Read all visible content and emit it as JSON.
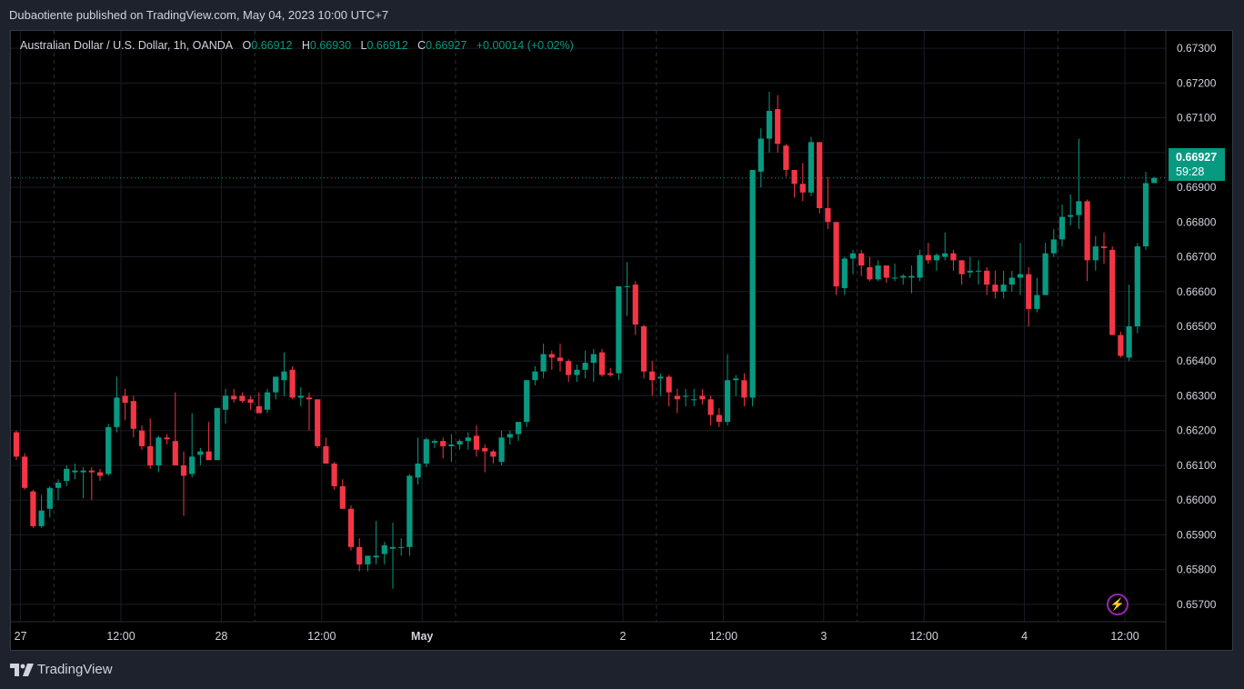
{
  "caption": "Dubaotiente published on TradingView.com, May 04, 2023 10:00 UTC+7",
  "legend": {
    "symbol": "Australian Dollar / U.S. Dollar, 1h, OANDA",
    "o_label": "O",
    "o_value": "0.66912",
    "h_label": "H",
    "h_value": "0.66930",
    "l_label": "L",
    "l_value": "0.66912",
    "c_label": "C",
    "c_value": "0.66927",
    "change": "+0.00014 (+0.02%)"
  },
  "last_price": {
    "price": "0.66927",
    "countdown": "59:28"
  },
  "footer": {
    "brand": "TradingView"
  },
  "icons": {
    "logo": "tradingview-logo-icon",
    "replay": "lightning-icon"
  },
  "colors": {
    "up": "#089981",
    "down": "#f23645",
    "background": "#000000",
    "frame": "#1e222d",
    "grid": "#1a1d26",
    "text": "#d1d4dc",
    "accent": "#9c27b0"
  },
  "chart_data": {
    "type": "candlestick",
    "timeframe": "1h",
    "ylim": [
      0.6565,
      0.6735
    ],
    "y_ticks": [
      "0.67300",
      "0.67200",
      "0.67100",
      "0.67000",
      "0.66900",
      "0.66800",
      "0.66700",
      "0.66600",
      "0.66500",
      "0.66400",
      "0.66300",
      "0.66200",
      "0.66100",
      "0.66000",
      "0.65900",
      "0.65800",
      "0.65700"
    ],
    "x_ticks": [
      {
        "label": "27",
        "index": 0.5
      },
      {
        "label": "12:00",
        "index": 12.5
      },
      {
        "label": "28",
        "index": 24.5
      },
      {
        "label": "12:00",
        "index": 36.5
      },
      {
        "label": "May",
        "index": 48.5,
        "bold": true
      },
      {
        "label": "2",
        "index": 72.5
      },
      {
        "label": "12:00",
        "index": 84.5
      },
      {
        "label": "3",
        "index": 96.5
      },
      {
        "label": "12:00",
        "index": 108.5
      },
      {
        "label": "4",
        "index": 120.5
      },
      {
        "label": "12:00",
        "index": 132.5
      }
    ],
    "session_lines": [
      4.5,
      28.5,
      52.5,
      76.5,
      100.5,
      124.5
    ],
    "candles": [
      [
        0.66195,
        0.662,
        0.66115,
        0.66125
      ],
      [
        0.66125,
        0.66135,
        0.6603,
        0.66035
      ],
      [
        0.66025,
        0.6603,
        0.6592,
        0.65925
      ],
      [
        0.65925,
        0.66015,
        0.6592,
        0.6597
      ],
      [
        0.65975,
        0.6604,
        0.6595,
        0.66035
      ],
      [
        0.66035,
        0.6606,
        0.66,
        0.6605
      ],
      [
        0.66055,
        0.661,
        0.6604,
        0.6609
      ],
      [
        0.6608,
        0.66105,
        0.6606,
        0.66085
      ],
      [
        0.6608,
        0.66095,
        0.66005,
        0.66085
      ],
      [
        0.66085,
        0.66095,
        0.66,
        0.6608
      ],
      [
        0.6608,
        0.6609,
        0.66055,
        0.6607
      ],
      [
        0.66075,
        0.6622,
        0.6607,
        0.6621
      ],
      [
        0.6621,
        0.66355,
        0.66195,
        0.66295
      ],
      [
        0.663,
        0.6632,
        0.6623,
        0.6628
      ],
      [
        0.66285,
        0.663,
        0.6618,
        0.66205
      ],
      [
        0.662,
        0.66215,
        0.66145,
        0.66155
      ],
      [
        0.66155,
        0.66235,
        0.6609,
        0.661
      ],
      [
        0.661,
        0.66185,
        0.6608,
        0.6618
      ],
      [
        0.6618,
        0.6619,
        0.6616,
        0.66175
      ],
      [
        0.6617,
        0.6631,
        0.66105,
        0.661
      ],
      [
        0.661,
        0.6614,
        0.65955,
        0.6607
      ],
      [
        0.66075,
        0.6625,
        0.66065,
        0.66125
      ],
      [
        0.6613,
        0.6615,
        0.661,
        0.6614
      ],
      [
        0.6614,
        0.66225,
        0.6613,
        0.66115
      ],
      [
        0.66115,
        0.66265,
        0.6613,
        0.66265
      ],
      [
        0.6626,
        0.6632,
        0.6622,
        0.663
      ],
      [
        0.663,
        0.6632,
        0.6628,
        0.6629
      ],
      [
        0.663,
        0.6631,
        0.6628,
        0.66285
      ],
      [
        0.6629,
        0.663,
        0.6626,
        0.6628
      ],
      [
        0.6627,
        0.6631,
        0.6625,
        0.6625
      ],
      [
        0.6626,
        0.6632,
        0.6625,
        0.6631
      ],
      [
        0.6631,
        0.66345,
        0.6629,
        0.66355
      ],
      [
        0.66345,
        0.66425,
        0.663,
        0.6637
      ],
      [
        0.66375,
        0.66385,
        0.6629,
        0.66295
      ],
      [
        0.66295,
        0.66325,
        0.6627,
        0.663
      ],
      [
        0.66295,
        0.6631,
        0.662,
        0.6629
      ],
      [
        0.6629,
        0.6629,
        0.6615,
        0.66155
      ],
      [
        0.66155,
        0.6618,
        0.6611,
        0.66105
      ],
      [
        0.66105,
        0.6611,
        0.6603,
        0.6604
      ],
      [
        0.6604,
        0.6606,
        0.65975,
        0.65975
      ],
      [
        0.65975,
        0.65985,
        0.65855,
        0.65865
      ],
      [
        0.65865,
        0.6589,
        0.65795,
        0.65815
      ],
      [
        0.65815,
        0.6584,
        0.65795,
        0.6584
      ],
      [
        0.65835,
        0.6594,
        0.65815,
        0.6584
      ],
      [
        0.65845,
        0.6588,
        0.65815,
        0.6587
      ],
      [
        0.6586,
        0.65935,
        0.65745,
        0.65865
      ],
      [
        0.65865,
        0.6589,
        0.6584,
        0.65865
      ],
      [
        0.65865,
        0.66075,
        0.6584,
        0.6607
      ],
      [
        0.66065,
        0.6618,
        0.66045,
        0.66105
      ],
      [
        0.66105,
        0.6618,
        0.66095,
        0.66175
      ],
      [
        0.66165,
        0.66175,
        0.6615,
        0.6617
      ],
      [
        0.6617,
        0.6618,
        0.6612,
        0.66155
      ],
      [
        0.66155,
        0.6619,
        0.6611,
        0.6616
      ],
      [
        0.6616,
        0.66175,
        0.66145,
        0.6617
      ],
      [
        0.6617,
        0.66195,
        0.66145,
        0.6618
      ],
      [
        0.66185,
        0.66215,
        0.66125,
        0.66145
      ],
      [
        0.6615,
        0.6616,
        0.6608,
        0.6614
      ],
      [
        0.6614,
        0.66145,
        0.66105,
        0.66125
      ],
      [
        0.6611,
        0.662,
        0.661,
        0.6618
      ],
      [
        0.6618,
        0.662,
        0.6616,
        0.6619
      ],
      [
        0.6619,
        0.6622,
        0.6617,
        0.66225
      ],
      [
        0.66225,
        0.66345,
        0.6621,
        0.66345
      ],
      [
        0.66345,
        0.66385,
        0.6633,
        0.6637
      ],
      [
        0.6637,
        0.6645,
        0.6635,
        0.6642
      ],
      [
        0.6642,
        0.6643,
        0.66375,
        0.6641
      ],
      [
        0.6641,
        0.6645,
        0.6637,
        0.664
      ],
      [
        0.664,
        0.66405,
        0.6634,
        0.6636
      ],
      [
        0.6636,
        0.6639,
        0.6634,
        0.66375
      ],
      [
        0.66375,
        0.6643,
        0.6635,
        0.66395
      ],
      [
        0.66395,
        0.66435,
        0.6634,
        0.6642
      ],
      [
        0.66425,
        0.66435,
        0.66355,
        0.6636
      ],
      [
        0.66365,
        0.6638,
        0.66355,
        0.6636
      ],
      [
        0.66365,
        0.66615,
        0.66345,
        0.66615
      ],
      [
        0.66615,
        0.66685,
        0.6653,
        0.66615
      ],
      [
        0.6662,
        0.6663,
        0.66475,
        0.66505
      ],
      [
        0.665,
        0.66505,
        0.6635,
        0.6637
      ],
      [
        0.6637,
        0.664,
        0.663,
        0.66345
      ],
      [
        0.6635,
        0.66365,
        0.663,
        0.66355
      ],
      [
        0.66355,
        0.6636,
        0.6627,
        0.6631
      ],
      [
        0.663,
        0.6632,
        0.6625,
        0.6629
      ],
      [
        0.663,
        0.6632,
        0.6627,
        0.663
      ],
      [
        0.6629,
        0.6632,
        0.6627,
        0.6629
      ],
      [
        0.663,
        0.6632,
        0.66275,
        0.6629
      ],
      [
        0.6629,
        0.663,
        0.66215,
        0.66245
      ],
      [
        0.66245,
        0.66265,
        0.6621,
        0.66225
      ],
      [
        0.66225,
        0.6642,
        0.66215,
        0.66345
      ],
      [
        0.66345,
        0.6636,
        0.663,
        0.6635
      ],
      [
        0.66345,
        0.66365,
        0.6627,
        0.66295
      ],
      [
        0.66295,
        0.6695,
        0.6627,
        0.6695
      ],
      [
        0.66945,
        0.6707,
        0.669,
        0.6704
      ],
      [
        0.6704,
        0.67175,
        0.67,
        0.6712
      ],
      [
        0.67125,
        0.67165,
        0.67,
        0.67025
      ],
      [
        0.6702,
        0.67025,
        0.6693,
        0.6695
      ],
      [
        0.6695,
        0.6695,
        0.6687,
        0.6691
      ],
      [
        0.6691,
        0.6697,
        0.6686,
        0.66885
      ],
      [
        0.66885,
        0.67045,
        0.66875,
        0.6703
      ],
      [
        0.6703,
        0.6703,
        0.66825,
        0.6684
      ],
      [
        0.6684,
        0.6693,
        0.6678,
        0.668
      ],
      [
        0.668,
        0.668,
        0.6659,
        0.66615
      ],
      [
        0.6661,
        0.667,
        0.6659,
        0.66695
      ],
      [
        0.66695,
        0.6672,
        0.6665,
        0.6671
      ],
      [
        0.6671,
        0.6672,
        0.66645,
        0.66675
      ],
      [
        0.6667,
        0.667,
        0.6663,
        0.66635
      ],
      [
        0.66635,
        0.6669,
        0.6663,
        0.66675
      ],
      [
        0.66675,
        0.66675,
        0.66625,
        0.6664
      ],
      [
        0.6664,
        0.6668,
        0.6663,
        0.6664
      ],
      [
        0.6664,
        0.6665,
        0.6662,
        0.66645
      ],
      [
        0.6664,
        0.66675,
        0.66595,
        0.66645
      ],
      [
        0.6664,
        0.6672,
        0.6663,
        0.66705
      ],
      [
        0.66705,
        0.6674,
        0.6668,
        0.6669
      ],
      [
        0.6669,
        0.6671,
        0.6666,
        0.66705
      ],
      [
        0.667,
        0.6677,
        0.6669,
        0.6671
      ],
      [
        0.6671,
        0.6672,
        0.6666,
        0.6669
      ],
      [
        0.6669,
        0.6669,
        0.6662,
        0.6665
      ],
      [
        0.66655,
        0.667,
        0.6664,
        0.6666
      ],
      [
        0.6666,
        0.6669,
        0.6662,
        0.6666
      ],
      [
        0.6666,
        0.6667,
        0.6659,
        0.6662
      ],
      [
        0.6662,
        0.6666,
        0.6658,
        0.666
      ],
      [
        0.666,
        0.6666,
        0.6658,
        0.6662
      ],
      [
        0.6662,
        0.6666,
        0.666,
        0.6664
      ],
      [
        0.6664,
        0.6674,
        0.6659,
        0.6665
      ],
      [
        0.6665,
        0.6667,
        0.665,
        0.6655
      ],
      [
        0.6655,
        0.6664,
        0.6654,
        0.6659
      ],
      [
        0.6659,
        0.6674,
        0.6659,
        0.6671
      ],
      [
        0.6671,
        0.6678,
        0.667,
        0.6675
      ],
      [
        0.6675,
        0.6685,
        0.6673,
        0.66815
      ],
      [
        0.66815,
        0.6688,
        0.6679,
        0.6682
      ],
      [
        0.6682,
        0.6704,
        0.6678,
        0.6686
      ],
      [
        0.6686,
        0.66865,
        0.6663,
        0.6669
      ],
      [
        0.6669,
        0.6676,
        0.6666,
        0.6673
      ],
      [
        0.6673,
        0.6677,
        0.6668,
        0.66725
      ],
      [
        0.6672,
        0.6673,
        0.6648,
        0.66475
      ],
      [
        0.66475,
        0.66485,
        0.6641,
        0.66415
      ],
      [
        0.6641,
        0.6662,
        0.664,
        0.665
      ],
      [
        0.665,
        0.6674,
        0.6648,
        0.6673
      ],
      [
        0.6673,
        0.66945,
        0.6672,
        0.66912
      ],
      [
        0.66912,
        0.6693,
        0.66912,
        0.66927
      ]
    ]
  }
}
